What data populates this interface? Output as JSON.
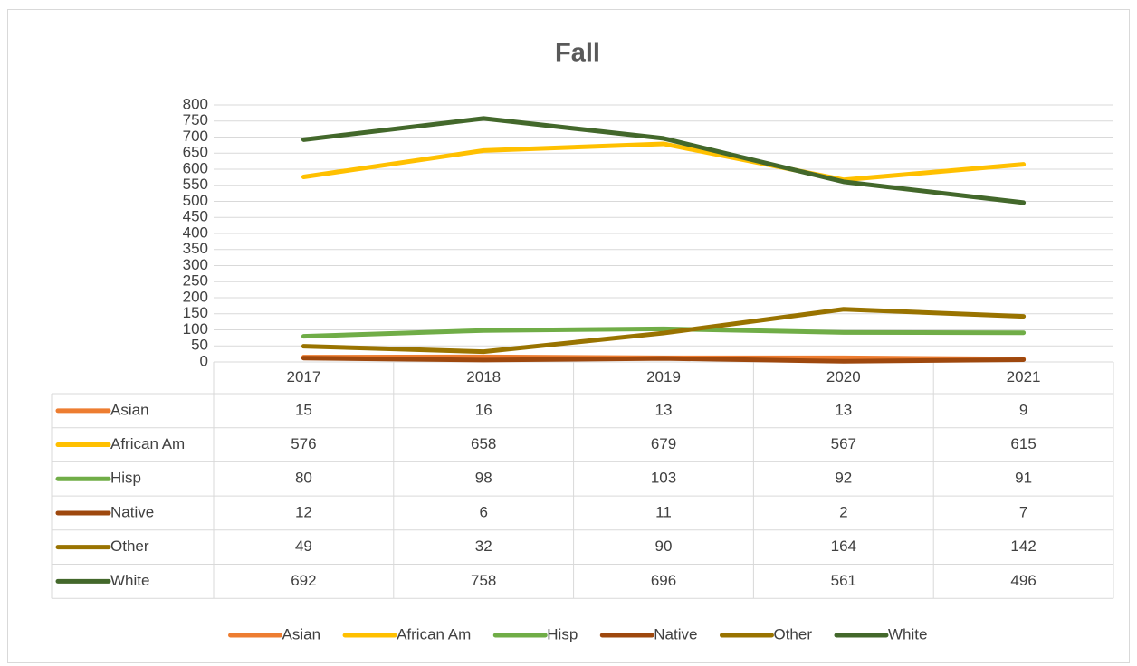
{
  "chart_data": {
    "type": "line",
    "title": "Fall",
    "categories": [
      "2017",
      "2018",
      "2019",
      "2020",
      "2021"
    ],
    "series": [
      {
        "name": "Asian",
        "color": "#ed7d31",
        "values": [
          15,
          16,
          13,
          13,
          9
        ]
      },
      {
        "name": "African Am",
        "color": "#ffc000",
        "values": [
          576,
          658,
          679,
          567,
          615
        ]
      },
      {
        "name": "Hisp",
        "color": "#70ad47",
        "values": [
          80,
          98,
          103,
          92,
          91
        ]
      },
      {
        "name": "Native",
        "color": "#9e480e",
        "values": [
          12,
          6,
          11,
          2,
          7
        ]
      },
      {
        "name": "Other",
        "color": "#997300",
        "values": [
          49,
          32,
          90,
          164,
          142
        ]
      },
      {
        "name": "White",
        "color": "#43682b",
        "values": [
          692,
          758,
          696,
          561,
          496
        ]
      }
    ],
    "ylim": [
      0,
      800
    ],
    "yticks": [
      0,
      50,
      100,
      150,
      200,
      250,
      300,
      350,
      400,
      450,
      500,
      550,
      600,
      650,
      700,
      750,
      800
    ],
    "grid": true,
    "data_table": true,
    "legend": "bottom"
  }
}
